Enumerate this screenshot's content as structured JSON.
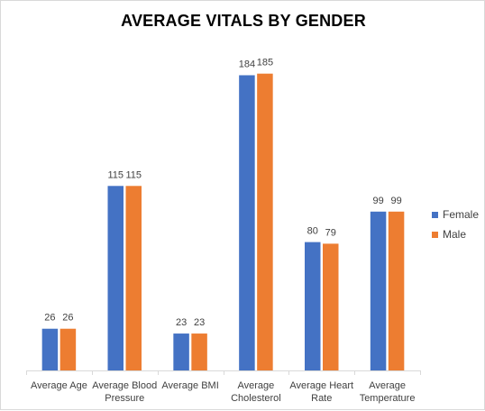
{
  "chart_data": {
    "type": "bar",
    "title": "AVERAGE VITALS BY GENDER",
    "xlabel": "",
    "ylabel": "",
    "ylim": [
      0,
      200
    ],
    "grid": false,
    "legend_position": "right",
    "categories": [
      [
        "Average Age"
      ],
      [
        "Average Blood",
        "Pressure"
      ],
      [
        "Average BMI"
      ],
      [
        "Average",
        "Cholesterol"
      ],
      [
        "Average Heart",
        "Rate"
      ],
      [
        "Average",
        "Temperature"
      ]
    ],
    "series": [
      {
        "name": "Female",
        "color": "#4472C4",
        "values": [
          26,
          115,
          23,
          184,
          80,
          99
        ]
      },
      {
        "name": "Male",
        "color": "#ED7D31",
        "values": [
          26,
          115,
          23,
          185,
          79,
          99
        ]
      }
    ]
  }
}
